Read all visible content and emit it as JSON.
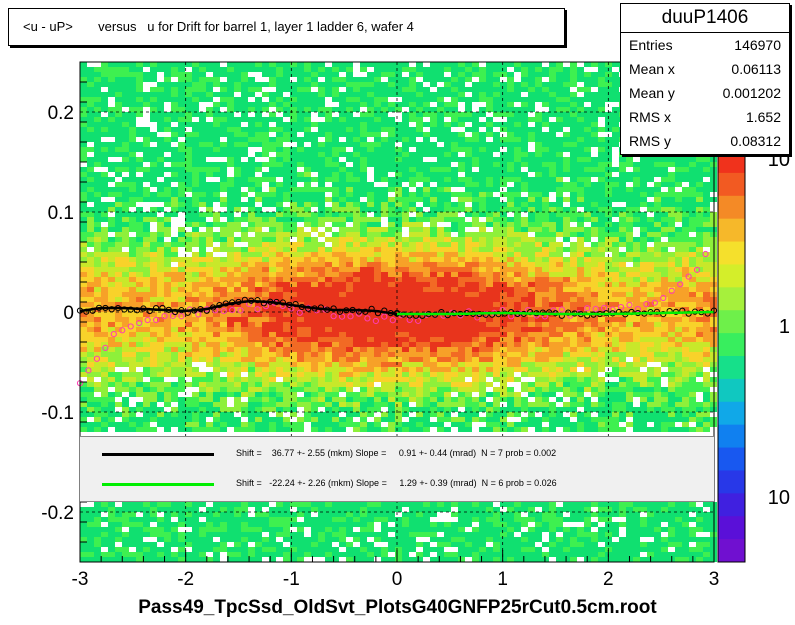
{
  "title": "<u - uP>       versus   u for Drift for barrel 1, layer 1 ladder 6, wafer 4",
  "stats": {
    "name": "duuP1406",
    "rows": [
      {
        "label": "Entries",
        "value": "146970"
      },
      {
        "label": "Mean x",
        "value": "0.06113"
      },
      {
        "label": "Mean y",
        "value": "0.001202"
      },
      {
        "label": "RMS x",
        "value": "1.652"
      },
      {
        "label": "RMS y",
        "value": "0.08312"
      }
    ]
  },
  "legend": [
    {
      "color": "#000000",
      "text": "Shift =    36.77 +- 2.55 (mkm) Slope =     0.91 +- 0.44 (mrad)  N = 7 prob = 0.002"
    },
    {
      "color": "#00ee00",
      "text": "Shift =   -22.24 +- 2.26 (mkm) Slope =     1.29 +- 0.39 (mrad)  N = 6 prob = 0.026"
    }
  ],
  "x_title": "Pass49_TpcSsd_OldSvt_PlotsG40GNFP25rCut0.5cm.root",
  "chart_data": {
    "type": "heatmap",
    "xlim": [
      -3,
      3
    ],
    "ylim": [
      -0.25,
      0.25
    ],
    "x_ticks": [
      "-3",
      "-2",
      "-1",
      "0",
      "1",
      "2",
      "3"
    ],
    "y_ticks": [
      "-0.2",
      "-0.1",
      "0",
      "0.1",
      "0.2"
    ],
    "y_tick_values": [
      -0.2,
      -0.1,
      0,
      0.1,
      0.2
    ],
    "color_scale": "log",
    "color_ticks": [
      "10",
      "1",
      "10"
    ],
    "grid": true,
    "profile_black": {
      "x": [
        -3.0,
        -2.8,
        -2.6,
        -2.4,
        -2.2,
        -2.0,
        -1.8,
        -1.6,
        -1.4,
        -1.2,
        -1.0,
        -0.8,
        -0.6,
        -0.4,
        -0.2,
        0.0
      ],
      "y": [
        0.001,
        0.004,
        0.004,
        0.003,
        0.002,
        0.001,
        0.003,
        0.008,
        0.011,
        0.01,
        0.007,
        0.004,
        0.002,
        0.002,
        0.001,
        -0.002
      ]
    },
    "profile_green": {
      "x": [
        0.0,
        0.5,
        1.0,
        1.5,
        2.0,
        2.5,
        3.0
      ],
      "y": [
        -0.002,
        -0.002,
        -0.001,
        -0.002,
        -0.002,
        -0.001,
        0.0
      ]
    },
    "profile_magenta": {
      "x": [
        -3.0,
        -2.8,
        -2.6,
        -2.4,
        -2.2,
        -2.0,
        -1.6,
        -1.2,
        -0.8,
        -0.4,
        0.0,
        0.5,
        1.0,
        1.5,
        2.0,
        2.4,
        2.6,
        2.8,
        2.9,
        3.0
      ],
      "y": [
        -0.075,
        -0.035,
        -0.02,
        -0.008,
        -0.004,
        0.0,
        0.004,
        0.008,
        0.0,
        -0.004,
        -0.006,
        -0.004,
        0.0,
        -0.002,
        0.004,
        0.008,
        0.018,
        0.035,
        0.045,
        0.09
      ]
    },
    "fit_black": {
      "shift_mkm": 36.77,
      "shift_err": 2.55,
      "slope_mrad": 0.91,
      "slope_err": 0.44,
      "n": 7,
      "prob": 0.002
    },
    "fit_green": {
      "shift_mkm": -22.24,
      "shift_err": 2.26,
      "slope_mrad": 1.29,
      "slope_err": 0.39,
      "n": 6,
      "prob": 0.026
    }
  }
}
